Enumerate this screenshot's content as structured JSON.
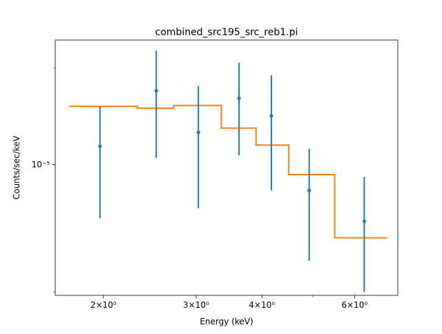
{
  "chart_data": {
    "type": "scatter",
    "title": "combined_src195_src_reb1.pi",
    "xlabel": "Energy (keV)",
    "ylabel": "Counts/sec/keV",
    "xscale": "log",
    "yscale": "log",
    "xlim": [
      1.62,
      7.25
    ],
    "ylim": [
      3.9e-06,
      2.45e-05
    ],
    "grid": false,
    "x_major_ticks": [
      {
        "value": 2,
        "label": "2×10⁰"
      },
      {
        "value": 3,
        "label": "3×10⁰"
      },
      {
        "value": 4,
        "label": "4×10⁰"
      },
      {
        "value": 6,
        "label": "6×10⁰"
      }
    ],
    "x_minor_ticks": [
      5
    ],
    "y_major_ticks": [
      {
        "value": 1e-05,
        "label": "10⁻⁵"
      }
    ],
    "y_minor_ticks": [
      4e-06,
      2e-05
    ],
    "series": [
      {
        "kind": "errorbar",
        "color": "#1f77b4",
        "points": [
          {
            "x": 1.97,
            "y": 1.14e-05,
            "ylo": 6.8e-06,
            "yhi": 1.52e-05
          },
          {
            "x": 2.52,
            "y": 1.7e-05,
            "ylo": 1.05e-05,
            "yhi": 2.27e-05
          },
          {
            "x": 3.03,
            "y": 1.26e-05,
            "ylo": 7.3e-06,
            "yhi": 1.76e-05
          },
          {
            "x": 3.62,
            "y": 1.61e-05,
            "ylo": 1.07e-05,
            "yhi": 2.08e-05
          },
          {
            "x": 4.17,
            "y": 1.42e-05,
            "ylo": 8.3e-06,
            "yhi": 1.9e-05
          },
          {
            "x": 4.92,
            "y": 8.3e-06,
            "ylo": 5e-06,
            "yhi": 1.12e-05
          },
          {
            "x": 6.26,
            "y": 6.65e-06,
            "ylo": 4e-06,
            "yhi": 9.15e-06
          }
        ]
      },
      {
        "kind": "step",
        "color": "#ff7f0e",
        "steps": [
          {
            "x0": 1.72,
            "x1": 2.32,
            "y": 1.52e-05
          },
          {
            "x0": 2.32,
            "x1": 2.72,
            "y": 1.5e-05
          },
          {
            "x0": 2.72,
            "x1": 3.35,
            "y": 1.53e-05
          },
          {
            "x0": 3.35,
            "x1": 3.9,
            "y": 1.3e-05
          },
          {
            "x0": 3.9,
            "x1": 4.5,
            "y": 1.15e-05
          },
          {
            "x0": 4.5,
            "x1": 5.5,
            "y": 9.3e-06
          },
          {
            "x0": 5.5,
            "x1": 6.92,
            "y": 5.9e-06
          }
        ]
      }
    ]
  }
}
